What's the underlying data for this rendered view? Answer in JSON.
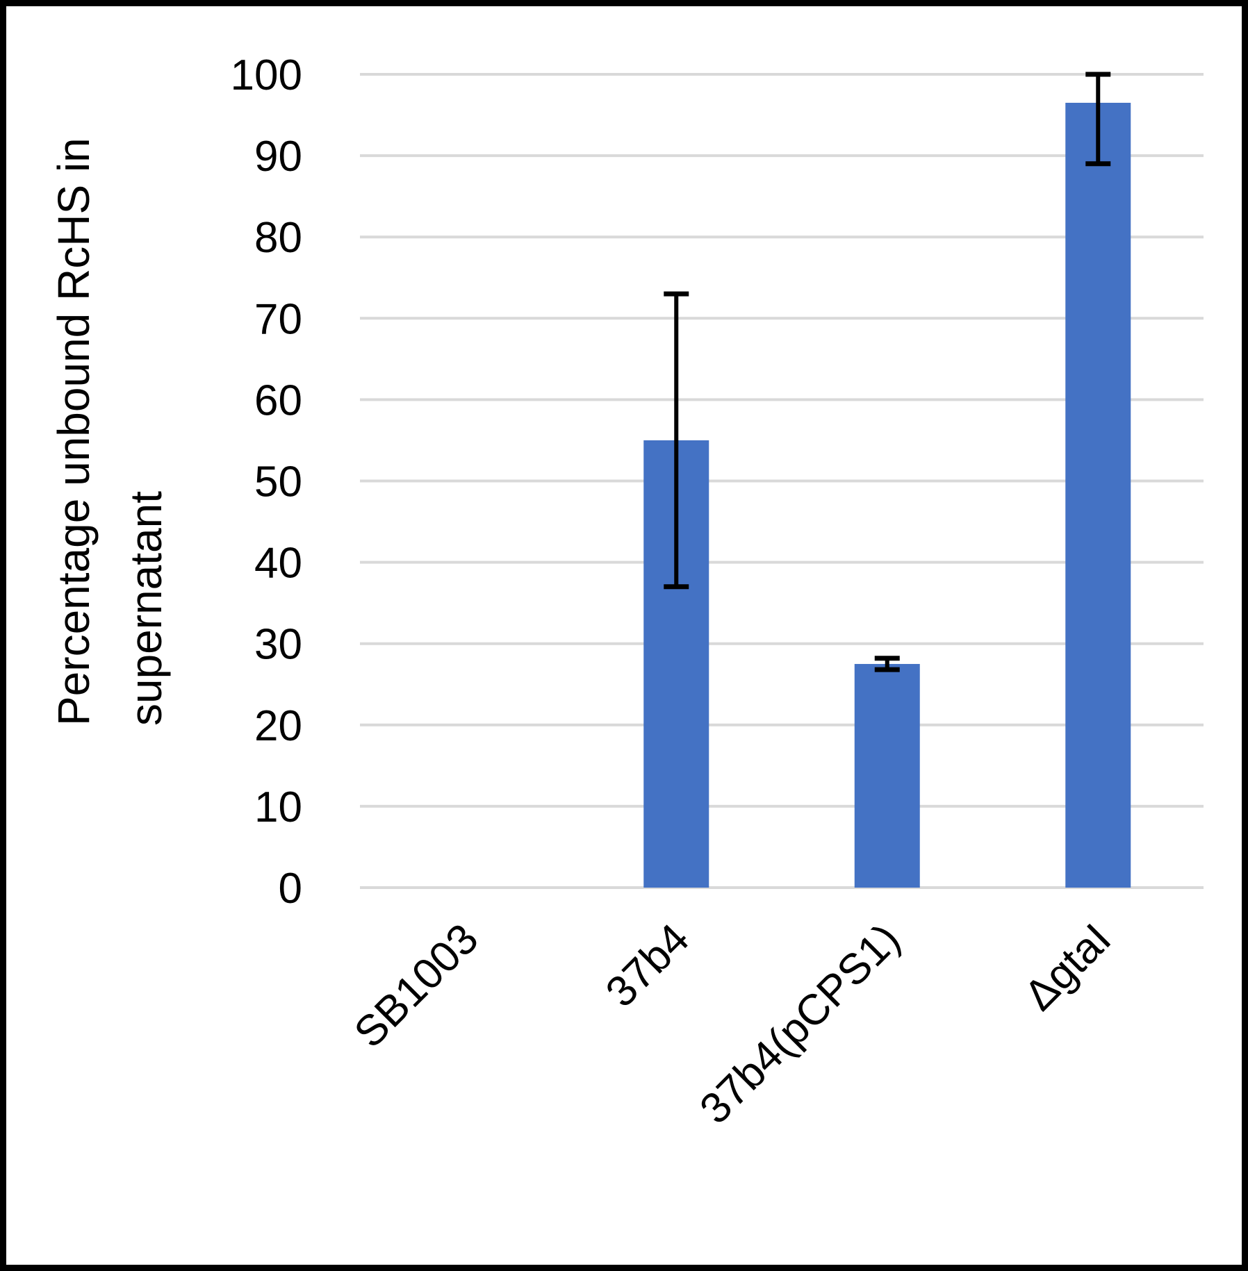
{
  "chart_data": {
    "type": "bar",
    "title": "",
    "xlabel": "",
    "ylabel_lines": [
      "Percentage unbound RcHS in",
      "supernatant"
    ],
    "ylim": [
      0,
      100
    ],
    "yticks": [
      "0",
      "10",
      "20",
      "30",
      "40",
      "50",
      "60",
      "70",
      "80",
      "90",
      "100"
    ],
    "grid": true,
    "legend": "none",
    "categories": [
      "SB1003",
      "37b4",
      "37b4(pCPS1)",
      "ΔgtaI"
    ],
    "values": [
      0,
      55,
      27.5,
      96.5
    ],
    "errors": [
      {
        "low": 0,
        "high": 0
      },
      {
        "low": 37,
        "high": 73
      },
      {
        "low": 26.8,
        "high": 28.2
      },
      {
        "low": 89,
        "high": 100
      }
    ],
    "bar_color": "#4472c4",
    "grid_color": "#d9d9d9",
    "error_color": "#000000"
  }
}
